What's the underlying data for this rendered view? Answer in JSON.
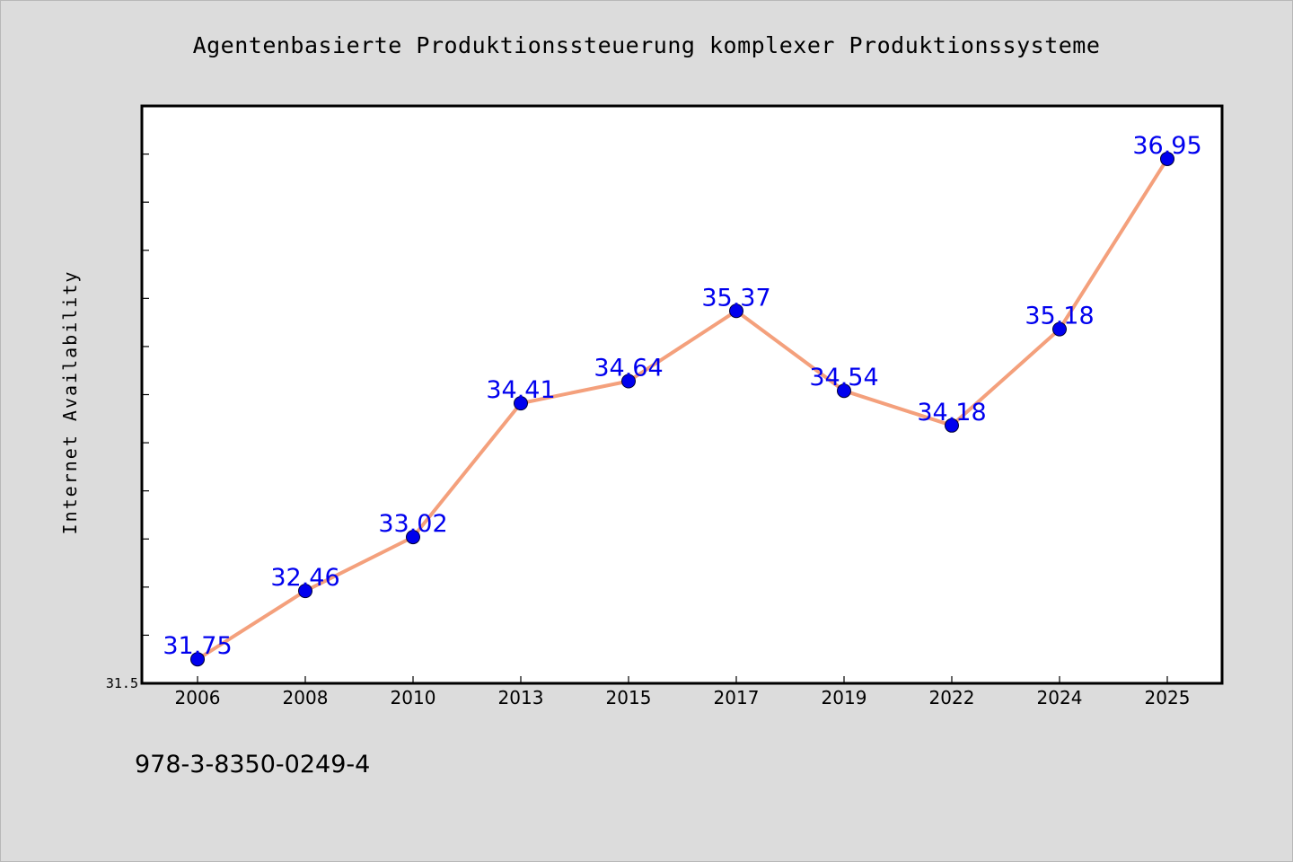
{
  "chart_data": {
    "type": "line",
    "title": "Agentenbasierte Produktionssteuerung komplexer Produktionssysteme",
    "xlabel": "",
    "ylabel": "Internet Availability",
    "categories": [
      "2006",
      "2008",
      "2010",
      "2013",
      "2015",
      "2017",
      "2019",
      "2022",
      "2024",
      "2025"
    ],
    "series": [
      {
        "values": [
          31.75,
          32.46,
          33.02,
          34.41,
          34.64,
          35.37,
          34.54,
          34.18,
          35.18,
          36.95
        ]
      }
    ],
    "data_labels": [
      "31.75",
      "32.46",
      "33.02",
      "34.41",
      "34.64",
      "35.37",
      "34.54",
      "34.18",
      "35.18",
      "36.95"
    ],
    "y_tick_labels": [
      "31.5"
    ],
    "ylim": [
      31.5,
      37.5
    ],
    "y_minor_tick_step": 0.5,
    "grid": false,
    "legend": "none",
    "colors": {
      "background": "#dcdcdc",
      "plot_background": "#ffffff",
      "line": "#f4a07c",
      "marker": "#0000ee",
      "data_label": "#0000ee",
      "axis": "#000000"
    }
  },
  "footer": {
    "isbn": "978-3-8350-0249-4"
  }
}
